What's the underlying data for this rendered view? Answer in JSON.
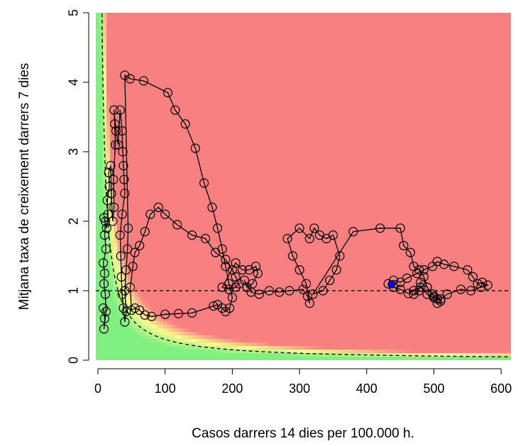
{
  "chart_data": {
    "type": "scatter",
    "xlabel": "Casos darrers 14 dies per 100.000 h.",
    "ylabel": "Mitjana taxa de creixement darrers 7 dies",
    "xlim": [
      0,
      630
    ],
    "ylim": [
      0,
      5
    ],
    "x_ticks": [
      "0",
      "100",
      "200",
      "300",
      "400",
      "500",
      "600"
    ],
    "y_ticks": [
      "0",
      "1",
      "2",
      "3",
      "4",
      "5"
    ],
    "reference_lines": [
      {
        "type": "horizontal",
        "y": 1,
        "style": "dashed"
      },
      {
        "type": "curve",
        "formula": "y = 30 / x",
        "style": "dashed"
      }
    ],
    "risk_colors": {
      "low": "#80f080",
      "medium": "#fafa90",
      "high": "#f88080"
    },
    "highlight_color": "#0000ff",
    "series": [
      {
        "values": [
          [
            8,
            0.75
          ],
          [
            10,
            0.6
          ],
          [
            9,
            0.45
          ],
          [
            12,
            0.7
          ],
          [
            11,
            0.95
          ],
          [
            9,
            1.1
          ],
          [
            10,
            1.25
          ],
          [
            8,
            1.4
          ],
          [
            12,
            1.6
          ],
          [
            10,
            1.8
          ],
          [
            11,
            2.0
          ],
          [
            9,
            2.05
          ],
          [
            13,
            1.9
          ],
          [
            15,
            2.1
          ],
          [
            14,
            2.3
          ],
          [
            17,
            2.5
          ],
          [
            16,
            2.7
          ],
          [
            19,
            2.8
          ],
          [
            20,
            2.4
          ],
          [
            22,
            2.0
          ],
          [
            24,
            2.2
          ],
          [
            23,
            2.6
          ],
          [
            26,
            3.1
          ],
          [
            25,
            3.4
          ],
          [
            24,
            3.6
          ],
          [
            27,
            3.3
          ],
          [
            30,
            3.1
          ],
          [
            33,
            3.6
          ],
          [
            36,
            3.3
          ],
          [
            37,
            3.0
          ],
          [
            38,
            2.8
          ],
          [
            39,
            2.6
          ],
          [
            40,
            2.4
          ],
          [
            36,
            2.1
          ],
          [
            33,
            1.8
          ],
          [
            34,
            1.5
          ],
          [
            35,
            1.2
          ],
          [
            36,
            0.95
          ],
          [
            38,
            0.75
          ],
          [
            40,
            0.55
          ],
          [
            42,
            0.7
          ],
          [
            40,
            1.0
          ],
          [
            42,
            1.3
          ],
          [
            44,
            1.6
          ],
          [
            45,
            1.9
          ],
          [
            40,
            4.1
          ],
          [
            48,
            4.05
          ],
          [
            68,
            4.02
          ],
          [
            104,
            3.85
          ],
          [
            115,
            3.6
          ],
          [
            130,
            3.4
          ],
          [
            145,
            3.05
          ],
          [
            158,
            2.55
          ],
          [
            170,
            2.2
          ],
          [
            178,
            1.9
          ],
          [
            185,
            1.6
          ],
          [
            190,
            1.35
          ],
          [
            195,
            1.1
          ],
          [
            200,
            0.9
          ],
          [
            196,
            0.75
          ],
          [
            190,
            0.7
          ],
          [
            185,
            0.75
          ],
          [
            178,
            0.8
          ],
          [
            172,
            0.78
          ],
          [
            140,
            0.68
          ],
          [
            120,
            0.67
          ],
          [
            100,
            0.66
          ],
          [
            80,
            0.63
          ],
          [
            70,
            0.65
          ],
          [
            62,
            0.72
          ],
          [
            55,
            0.75
          ],
          [
            50,
            0.72
          ],
          [
            48,
            1.05
          ],
          [
            52,
            1.35
          ],
          [
            55,
            1.55
          ],
          [
            62,
            1.65
          ],
          [
            70,
            1.85
          ],
          [
            78,
            2.1
          ],
          [
            90,
            2.2
          ],
          [
            100,
            2.1
          ],
          [
            118,
            1.95
          ],
          [
            140,
            1.8
          ],
          [
            160,
            1.75
          ],
          [
            175,
            1.55
          ],
          [
            190,
            1.45
          ],
          [
            200,
            1.3
          ],
          [
            205,
            1.2
          ],
          [
            210,
            1.1
          ],
          [
            205,
            1.05
          ],
          [
            195,
            1.02
          ],
          [
            185,
            1.05
          ],
          [
            205,
            1.4
          ],
          [
            215,
            1.3
          ],
          [
            225,
            1.3
          ],
          [
            235,
            1.35
          ],
          [
            238,
            1.25
          ],
          [
            230,
            1.1
          ],
          [
            222,
            1.05
          ],
          [
            218,
            1.15
          ],
          [
            228,
            0.98
          ],
          [
            240,
            0.95
          ],
          [
            255,
            1.0
          ],
          [
            270,
            0.98
          ],
          [
            285,
            1.0
          ],
          [
            305,
            1.02
          ],
          [
            312,
            0.92
          ],
          [
            315,
            0.82
          ],
          [
            310,
            1.1
          ],
          [
            300,
            1.3
          ],
          [
            290,
            1.5
          ],
          [
            282,
            1.75
          ],
          [
            300,
            1.9
          ],
          [
            315,
            1.75
          ],
          [
            322,
            1.9
          ],
          [
            330,
            1.8
          ],
          [
            340,
            1.75
          ],
          [
            350,
            1.8
          ],
          [
            360,
            1.5
          ],
          [
            355,
            1.3
          ],
          [
            345,
            1.15
          ],
          [
            335,
            1.0
          ],
          [
            320,
            0.95
          ],
          [
            380,
            1.85
          ],
          [
            420,
            1.9
          ],
          [
            450,
            1.9
          ],
          [
            455,
            1.65
          ],
          [
            465,
            1.55
          ],
          [
            470,
            1.35
          ],
          [
            478,
            1.3
          ],
          [
            485,
            1.2
          ],
          [
            490,
            1.05
          ],
          [
            498,
            0.95
          ],
          [
            505,
            0.88
          ],
          [
            510,
            0.85
          ],
          [
            505,
            0.82
          ],
          [
            500,
            0.9
          ],
          [
            490,
            0.95
          ],
          [
            480,
            1.05
          ],
          [
            470,
            1.0
          ],
          [
            462,
            0.96
          ],
          [
            450,
            1.02
          ],
          [
            440,
            1.05
          ],
          [
            432,
            1.1
          ],
          [
            440,
            1.15
          ],
          [
            450,
            1.12
          ],
          [
            460,
            1.18
          ],
          [
            475,
            1.25
          ],
          [
            485,
            1.3
          ],
          [
            498,
            1.35
          ],
          [
            505,
            1.42
          ],
          [
            515,
            1.38
          ],
          [
            530,
            1.35
          ],
          [
            550,
            1.3
          ],
          [
            558,
            1.2
          ],
          [
            565,
            1.1
          ],
          [
            572,
            1.12
          ],
          [
            580,
            1.08
          ],
          [
            570,
            1.05
          ],
          [
            555,
            1.0
          ],
          [
            540,
            1.02
          ],
          [
            520,
            0.95
          ],
          [
            510,
            0.88
          ],
          [
            500,
            0.92
          ],
          [
            490,
            1.05
          ],
          [
            480,
            1.12
          ],
          [
            478,
            1.0
          ],
          [
            470,
            0.95
          ]
        ]
      }
    ],
    "highlight_point": [
      437,
      1.09
    ]
  }
}
